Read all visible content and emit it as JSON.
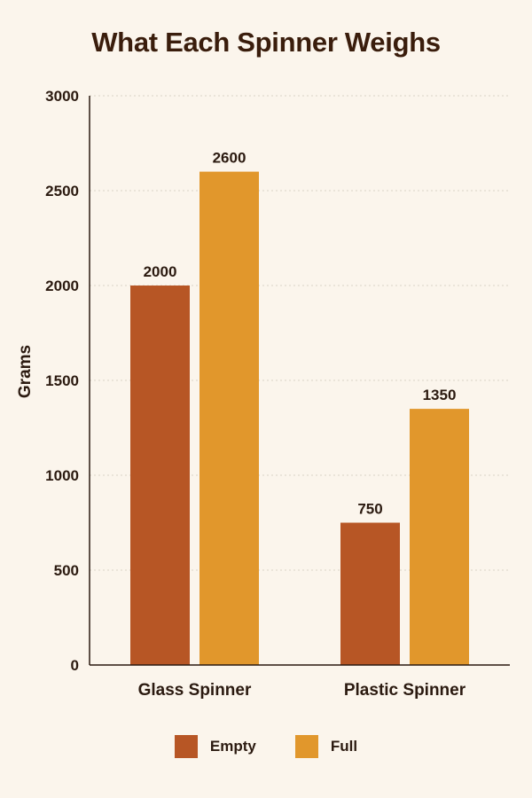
{
  "chart_data": {
    "type": "bar",
    "title": "What Each Spinner Weighs",
    "xlabel": "",
    "ylabel": "Grams",
    "categories": [
      "Glass Spinner",
      "Plastic Spinner"
    ],
    "series": [
      {
        "name": "Empty",
        "values": [
          2000,
          750
        ],
        "color": "#B75625"
      },
      {
        "name": "Full",
        "values": [
          2600,
          1350
        ],
        "color": "#E1972C"
      }
    ],
    "ylim": [
      0,
      3000
    ],
    "yticks": [
      0,
      500,
      1000,
      1500,
      2000,
      2500,
      3000
    ],
    "grid": true,
    "legend_position": "bottom-center",
    "data_labels": true
  }
}
